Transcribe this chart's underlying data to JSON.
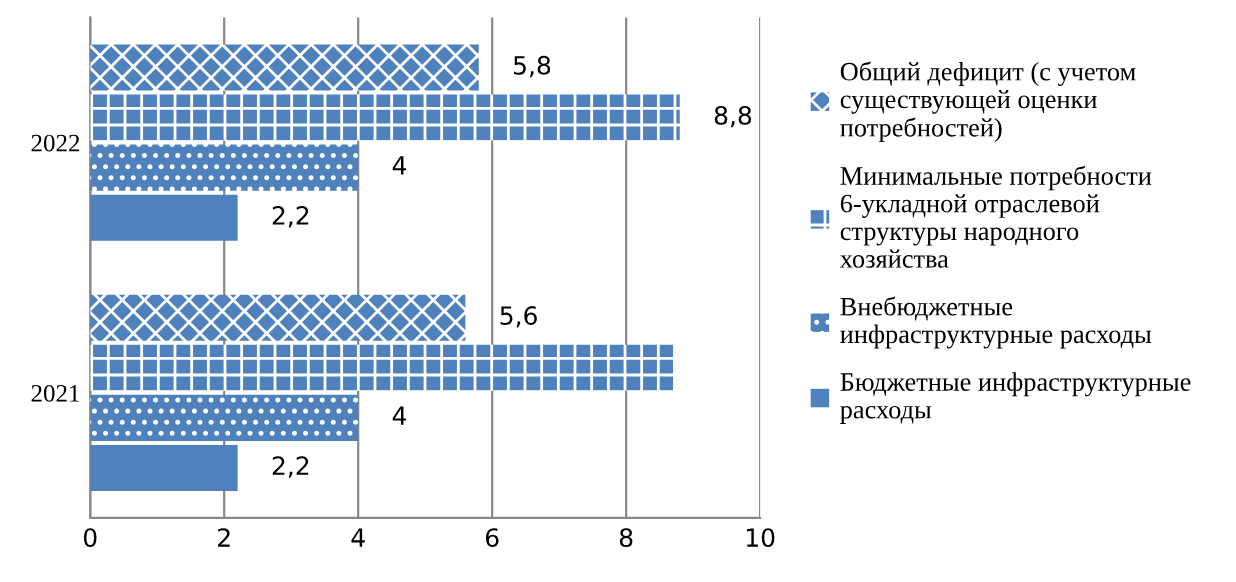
{
  "chart_data": {
    "type": "bar",
    "orientation": "horizontal",
    "categories": [
      "2022",
      "2021"
    ],
    "series": [
      {
        "name": "Общий дефицит (с учетом существующей оценки потребностей)",
        "color": "#4f81bd",
        "values": [
          5.8,
          5.6
        ],
        "value_labels": [
          "5,8",
          "5,6"
        ]
      },
      {
        "name": "Минимальные потребности 6-укладной отраслевой структуры народного хозяйства",
        "color": "#4f81bd",
        "values": [
          8.8,
          8.7
        ],
        "value_labels": [
          "8,8",
          null
        ]
      },
      {
        "name": "Внебюджетные инфраструктурные расходы",
        "color": "#4f81bd",
        "values": [
          4,
          4
        ],
        "value_labels": [
          "4",
          "4"
        ]
      },
      {
        "name": "Бюджетные инфраструктурные расходы",
        "color": "#4f81bd",
        "values": [
          2.2,
          2.2
        ],
        "value_labels": [
          "2,2",
          "2,2"
        ]
      }
    ],
    "xlim": [
      0,
      10
    ],
    "xticks": [
      0,
      2,
      4,
      6,
      8,
      10
    ],
    "grid": "x",
    "legend": "right"
  }
}
